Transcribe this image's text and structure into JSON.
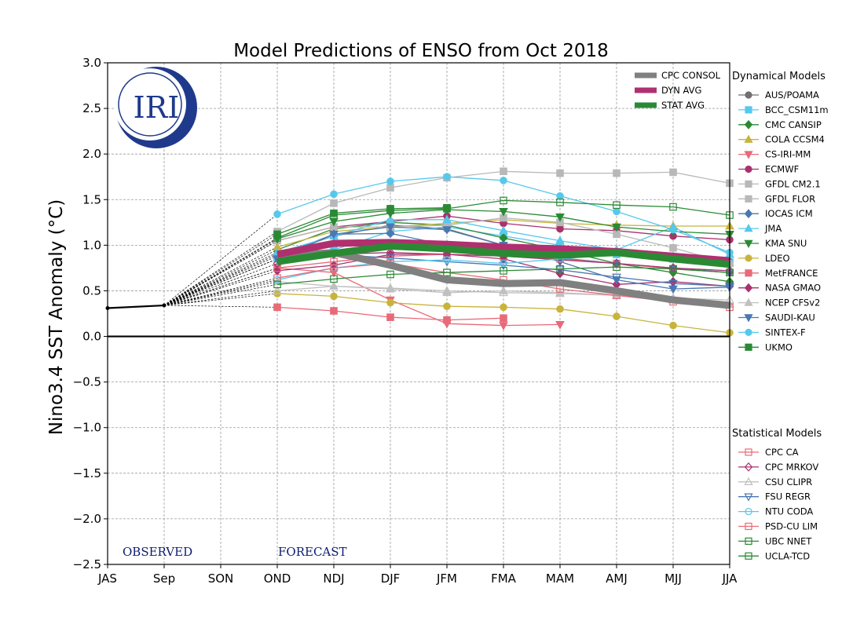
{
  "chart_data": {
    "type": "line",
    "title": "Model Predictions of ENSO from Oct 2018",
    "ylabel": "Nino3.4 SST Anomaly (°C)",
    "xlabel": "",
    "categories": [
      "JAS",
      "Sep",
      "SON",
      "OND",
      "NDJ",
      "DJF",
      "JFM",
      "FMA",
      "MAM",
      "AMJ",
      "MJJ",
      "JJA"
    ],
    "ylim": [
      -2.5,
      3.0
    ],
    "yticks": [
      "3.0",
      "2.5",
      "2.0",
      "1.5",
      "1.0",
      "0.5",
      "0.0",
      "−0.5",
      "−1.0",
      "−1.5",
      "−2.0",
      "−2.5"
    ],
    "grid": true,
    "observed": {
      "x": [
        0,
        1
      ],
      "values": [
        0.31,
        0.34
      ],
      "color": "#000000"
    },
    "annotations": {
      "observed": "OBSERVED",
      "forecast": "FORECAST",
      "logo": "IRI"
    },
    "averages": [
      {
        "name": "CPC CONSOL",
        "color": "#808080",
        "width": 9,
        "values": [
          0.88,
          0.92,
          0.78,
          0.62,
          0.58,
          0.59,
          0.5,
          0.4,
          0.34
        ]
      },
      {
        "name": "DYN AVG",
        "color": "#b0306f",
        "width": 9,
        "values": [
          0.9,
          1.02,
          1.03,
          1.01,
          0.98,
          0.96,
          0.93,
          0.88,
          0.83
        ]
      },
      {
        "name": "STAT AVG",
        "color": "#2a8a34",
        "width": 9,
        "values": [
          0.82,
          0.91,
          0.99,
          0.96,
          0.91,
          0.89,
          0.92,
          0.85,
          0.79
        ]
      }
    ],
    "dynamical_title": "Dynamical Models",
    "dynamical": [
      {
        "name": "AUS/POAMA",
        "color": "#707070",
        "marker": "circle",
        "filled": true,
        "values": [
          0.9,
          1.1,
          1.22,
          1.18,
          1.0,
          0.92,
          0.9,
          0.85,
          0.82
        ]
      },
      {
        "name": "BCC_CSM11m",
        "color": "#56c8ec",
        "marker": "square",
        "filled": true,
        "values": [
          0.85,
          0.95,
          1.15,
          1.2,
          1.1,
          1.0,
          0.9,
          0.85,
          0.8
        ]
      },
      {
        "name": "CMC CANSIP",
        "color": "#2a8a34",
        "marker": "diamond",
        "filled": true,
        "values": [
          0.95,
          1.18,
          1.25,
          1.22,
          1.08,
          0.95,
          0.8,
          0.7,
          0.6
        ]
      },
      {
        "name": "COLA CCSM4",
        "color": "#c8b43c",
        "marker": "triangle",
        "filled": true,
        "values": [
          0.98,
          1.15,
          1.2,
          1.24,
          1.28,
          1.24,
          1.22,
          1.21,
          1.21
        ]
      },
      {
        "name": "CS-IRI-MM",
        "color": "#e86a78",
        "marker": "triangle-down",
        "filled": true,
        "values": [
          0.75,
          0.7,
          0.4,
          0.14,
          0.12,
          0.13
        ]
      },
      {
        "name": "ECMWF",
        "color": "#a8326f",
        "marker": "circle",
        "filled": true,
        "values": [
          1.05,
          1.2,
          1.26,
          1.32,
          1.24,
          1.18,
          1.16,
          1.1,
          1.06
        ]
      },
      {
        "name": "GFDL CM2.1",
        "color": "#b8b8b8",
        "marker": "square",
        "filled": true,
        "values": [
          1.15,
          1.46,
          1.63,
          1.74,
          1.81,
          1.79,
          1.79,
          1.8,
          1.68
        ]
      },
      {
        "name": "GFDL FLOR",
        "color": "#b8b8b8",
        "marker": "square",
        "filled": true,
        "values": [
          1.05,
          1.2,
          1.2,
          1.22,
          1.3,
          1.25,
          1.12,
          0.97,
          0.8
        ]
      },
      {
        "name": "IOCAS ICM",
        "color": "#4a78b4",
        "marker": "diamond",
        "filled": true,
        "values": [
          0.88,
          1.12,
          1.13,
          1.0,
          0.93,
          0.86,
          0.8,
          0.75,
          0.7
        ]
      },
      {
        "name": "JMA",
        "color": "#56c8ec",
        "marker": "triangle",
        "filled": true,
        "values": [
          0.92,
          1.1,
          1.28,
          1.28,
          1.16,
          1.05,
          0.95,
          1.2,
          0.9
        ]
      },
      {
        "name": "KMA SNU",
        "color": "#2a8a34",
        "marker": "triangle-down",
        "filled": true,
        "values": [
          1.07,
          1.26,
          1.35,
          1.39,
          1.37,
          1.31,
          1.2,
          1.15,
          1.12
        ]
      },
      {
        "name": "LDEO",
        "color": "#c8b43c",
        "marker": "circle",
        "filled": true,
        "values": [
          0.47,
          0.44,
          0.37,
          0.33,
          0.32,
          0.3,
          0.22,
          0.12,
          0.04
        ]
      },
      {
        "name": "MetFRANCE",
        "color": "#e86a78",
        "marker": "square",
        "filled": true,
        "values": [
          0.32,
          0.28,
          0.21,
          0.18,
          0.2
        ]
      },
      {
        "name": "NASA GMAO",
        "color": "#a8326f",
        "marker": "diamond",
        "filled": true,
        "values": [
          0.72,
          0.78,
          0.9,
          0.9,
          0.85,
          0.69,
          0.57,
          0.6,
          0.55
        ]
      },
      {
        "name": "NCEP CFSv2",
        "color": "#c0c0c0",
        "marker": "triangle",
        "filled": true,
        "values": [
          0.6,
          0.55,
          0.52,
          0.48,
          0.5,
          0.48,
          0.45,
          0.4,
          0.35
        ]
      },
      {
        "name": "SAUDI-KAU",
        "color": "#4a78b4",
        "marker": "triangle-down",
        "filled": true,
        "values": [
          0.85,
          1.12,
          1.2,
          1.17,
          1.0,
          0.82,
          0.62,
          0.52,
          0.54
        ]
      },
      {
        "name": "SINTEX-F",
        "color": "#56c8ec",
        "marker": "circle",
        "filled": true,
        "values": [
          1.34,
          1.56,
          1.7,
          1.75,
          1.71,
          1.54,
          1.37,
          1.17,
          0.92
        ]
      },
      {
        "name": "UKMO",
        "color": "#2a8a34",
        "marker": "square",
        "filled": true,
        "values": [
          1.12,
          1.35,
          1.4,
          1.41
        ]
      }
    ],
    "statistical_title": "Statistical Models",
    "statistical": [
      {
        "name": "CPC CA",
        "color": "#e86a78",
        "marker": "square",
        "filled": false,
        "values": [
          0.75,
          0.82,
          0.88,
          0.9,
          0.88,
          0.85,
          0.8,
          0.74,
          0.7
        ]
      },
      {
        "name": "CPC MRKOV",
        "color": "#a8326f",
        "marker": "diamond",
        "filled": false,
        "values": [
          0.8,
          0.9,
          0.92,
          0.9,
          0.88,
          0.84,
          0.8,
          0.75,
          0.72
        ]
      },
      {
        "name": "CSU CLIPR",
        "color": "#c0c0c0",
        "marker": "triangle",
        "filled": false,
        "values": [
          0.5,
          0.55,
          0.53,
          0.5,
          0.48,
          0.47,
          0.45,
          0.42,
          0.4
        ]
      },
      {
        "name": "FSU REGR",
        "color": "#4a78b4",
        "marker": "triangle-down",
        "filled": false,
        "values": [
          0.85,
          0.9,
          0.86,
          0.82,
          0.78,
          0.73,
          0.65,
          0.58,
          0.55
        ]
      },
      {
        "name": "NTU CODA",
        "color": "#56c8ec",
        "marker": "circle",
        "filled": false,
        "values": [
          0.62,
          0.75,
          0.82,
          0.84,
          0.8,
          0.85,
          0.9,
          0.88,
          0.85
        ]
      },
      {
        "name": "PSD-CU LIM",
        "color": "#e86a78",
        "marker": "square",
        "filled": false,
        "values": [
          0.64,
          0.75,
          0.8,
          0.7,
          0.62,
          0.52,
          0.45,
          0.38,
          0.32
        ]
      },
      {
        "name": "UBC NNET",
        "color": "#2a8a34",
        "marker": "square",
        "filled": false,
        "values": [
          0.57,
          0.63,
          0.68,
          0.7,
          0.72,
          0.74,
          0.76,
          0.74,
          0.7
        ]
      },
      {
        "name": "UCLA-TCD",
        "color": "#2a8a34",
        "marker": "square",
        "filled": false,
        "values": [
          1.08,
          1.33,
          1.38,
          1.4,
          1.49,
          1.47,
          1.44,
          1.42,
          1.33
        ]
      }
    ]
  }
}
